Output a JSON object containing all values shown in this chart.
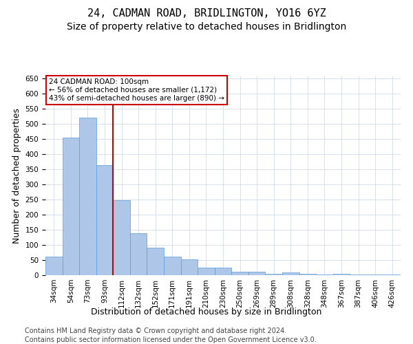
{
  "title": "24, CADMAN ROAD, BRIDLINGTON, YO16 6YZ",
  "subtitle": "Size of property relative to detached houses in Bridlington",
  "xlabel": "Distribution of detached houses by size in Bridlington",
  "ylabel": "Number of detached properties",
  "footer_line1": "Contains HM Land Registry data © Crown copyright and database right 2024.",
  "footer_line2": "Contains public sector information licensed under the Open Government Licence v3.0.",
  "annotation_line1": "24 CADMAN ROAD: 100sqm",
  "annotation_line2": "← 56% of detached houses are smaller (1,172)",
  "annotation_line3": "43% of semi-detached houses are larger (890) →",
  "bar_values": [
    62,
    455,
    522,
    365,
    247,
    138,
    91,
    62,
    53,
    25,
    25,
    11,
    11,
    5,
    8,
    5,
    2,
    5,
    2,
    2,
    2
  ],
  "categories": [
    "34sqm",
    "54sqm",
    "73sqm",
    "93sqm",
    "112sqm",
    "132sqm",
    "152sqm",
    "171sqm",
    "191sqm",
    "210sqm",
    "230sqm",
    "250sqm",
    "269sqm",
    "289sqm",
    "308sqm",
    "328sqm",
    "348sqm",
    "367sqm",
    "387sqm",
    "406sqm",
    "426sqm"
  ],
  "bar_color": "#aec6e8",
  "bar_edge_color": "#5b9bd5",
  "ylim": [
    0,
    660
  ],
  "yticks": [
    0,
    50,
    100,
    150,
    200,
    250,
    300,
    350,
    400,
    450,
    500,
    550,
    600,
    650
  ],
  "background_color": "#ffffff",
  "grid_color": "#c8d4e8",
  "annotation_box_color": "#ffffff",
  "annotation_box_edge": "#cc0000",
  "red_line_color": "#cc0000",
  "red_line_x": 3.5,
  "title_fontsize": 11,
  "subtitle_fontsize": 10,
  "axis_label_fontsize": 9,
  "tick_fontsize": 7.5,
  "footer_fontsize": 7
}
